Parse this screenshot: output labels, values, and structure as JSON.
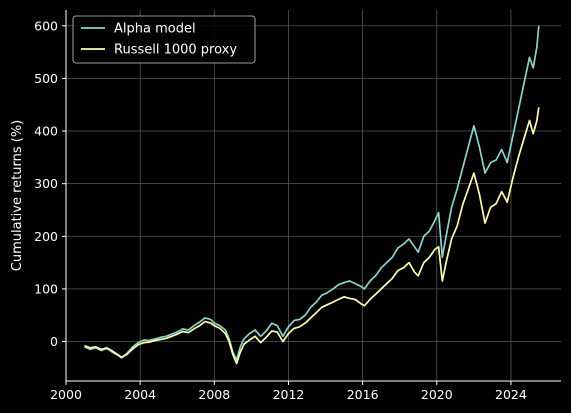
{
  "chart_data": {
    "type": "line",
    "title": "",
    "xlabel": "",
    "ylabel": "Cumulative returns (%)",
    "xlim": [
      2000.0,
      2026.7
    ],
    "ylim": [
      -75,
      630
    ],
    "xticks": [
      2000,
      2004,
      2008,
      2012,
      2016,
      2020,
      2024
    ],
    "yticks": [
      0,
      100,
      200,
      300,
      400,
      500,
      600
    ],
    "grid": true,
    "legend_position": "top-left",
    "colors": {
      "background": "#000000",
      "grid": "#555555",
      "axis": "#ffffff"
    },
    "series": [
      {
        "name": "Alpha model",
        "color": "#8dd3c7",
        "points": [
          [
            2001.0,
            -10
          ],
          [
            2001.3,
            -15
          ],
          [
            2001.6,
            -12
          ],
          [
            2001.9,
            -17
          ],
          [
            2002.2,
            -13
          ],
          [
            2002.5,
            -20
          ],
          [
            2002.8,
            -26
          ],
          [
            2003.0,
            -31
          ],
          [
            2003.3,
            -22
          ],
          [
            2003.6,
            -10
          ],
          [
            2003.9,
            -2
          ],
          [
            2004.2,
            3
          ],
          [
            2004.5,
            2
          ],
          [
            2004.8,
            5
          ],
          [
            2005.1,
            8
          ],
          [
            2005.4,
            10
          ],
          [
            2005.7,
            14
          ],
          [
            2006.0,
            18
          ],
          [
            2006.3,
            24
          ],
          [
            2006.6,
            22
          ],
          [
            2006.9,
            30
          ],
          [
            2007.2,
            37
          ],
          [
            2007.5,
            45
          ],
          [
            2007.8,
            42
          ],
          [
            2008.0,
            35
          ],
          [
            2008.3,
            30
          ],
          [
            2008.6,
            22
          ],
          [
            2008.8,
            5
          ],
          [
            2009.0,
            -20
          ],
          [
            2009.2,
            -35
          ],
          [
            2009.4,
            -10
          ],
          [
            2009.6,
            5
          ],
          [
            2009.9,
            15
          ],
          [
            2010.2,
            22
          ],
          [
            2010.5,
            10
          ],
          [
            2010.8,
            20
          ],
          [
            2011.1,
            35
          ],
          [
            2011.4,
            30
          ],
          [
            2011.7,
            10
          ],
          [
            2012.0,
            28
          ],
          [
            2012.3,
            40
          ],
          [
            2012.6,
            42
          ],
          [
            2012.9,
            50
          ],
          [
            2013.2,
            65
          ],
          [
            2013.5,
            75
          ],
          [
            2013.8,
            88
          ],
          [
            2014.1,
            93
          ],
          [
            2014.4,
            100
          ],
          [
            2014.7,
            108
          ],
          [
            2015.0,
            112
          ],
          [
            2015.3,
            115
          ],
          [
            2015.6,
            110
          ],
          [
            2015.9,
            105
          ],
          [
            2016.1,
            100
          ],
          [
            2016.4,
            115
          ],
          [
            2016.7,
            125
          ],
          [
            2017.0,
            140
          ],
          [
            2017.3,
            150
          ],
          [
            2017.6,
            160
          ],
          [
            2017.9,
            178
          ],
          [
            2018.2,
            185
          ],
          [
            2018.5,
            195
          ],
          [
            2018.8,
            180
          ],
          [
            2019.0,
            170
          ],
          [
            2019.3,
            200
          ],
          [
            2019.6,
            210
          ],
          [
            2019.9,
            230
          ],
          [
            2020.1,
            245
          ],
          [
            2020.3,
            160
          ],
          [
            2020.5,
            200
          ],
          [
            2020.8,
            255
          ],
          [
            2021.1,
            290
          ],
          [
            2021.4,
            330
          ],
          [
            2021.7,
            370
          ],
          [
            2022.0,
            410
          ],
          [
            2022.3,
            370
          ],
          [
            2022.6,
            320
          ],
          [
            2022.9,
            340
          ],
          [
            2023.2,
            345
          ],
          [
            2023.5,
            365
          ],
          [
            2023.8,
            340
          ],
          [
            2024.1,
            390
          ],
          [
            2024.4,
            440
          ],
          [
            2024.7,
            490
          ],
          [
            2025.0,
            540
          ],
          [
            2025.2,
            520
          ],
          [
            2025.4,
            560
          ],
          [
            2025.5,
            600
          ]
        ]
      },
      {
        "name": "Russell 1000 proxy",
        "color": "#ffffb3",
        "points": [
          [
            2001.0,
            -8
          ],
          [
            2001.3,
            -12
          ],
          [
            2001.6,
            -10
          ],
          [
            2001.9,
            -15
          ],
          [
            2002.2,
            -12
          ],
          [
            2002.5,
            -18
          ],
          [
            2002.8,
            -25
          ],
          [
            2003.0,
            -30
          ],
          [
            2003.3,
            -24
          ],
          [
            2003.6,
            -14
          ],
          [
            2003.9,
            -6
          ],
          [
            2004.2,
            -2
          ],
          [
            2004.5,
            -1
          ],
          [
            2004.8,
            2
          ],
          [
            2005.1,
            4
          ],
          [
            2005.4,
            6
          ],
          [
            2005.7,
            10
          ],
          [
            2006.0,
            14
          ],
          [
            2006.3,
            19
          ],
          [
            2006.6,
            17
          ],
          [
            2006.9,
            24
          ],
          [
            2007.2,
            30
          ],
          [
            2007.5,
            38
          ],
          [
            2007.8,
            35
          ],
          [
            2008.0,
            30
          ],
          [
            2008.3,
            25
          ],
          [
            2008.6,
            15
          ],
          [
            2008.8,
            0
          ],
          [
            2009.0,
            -25
          ],
          [
            2009.2,
            -42
          ],
          [
            2009.4,
            -20
          ],
          [
            2009.6,
            -5
          ],
          [
            2009.9,
            3
          ],
          [
            2010.2,
            10
          ],
          [
            2010.5,
            -2
          ],
          [
            2010.8,
            8
          ],
          [
            2011.1,
            20
          ],
          [
            2011.4,
            18
          ],
          [
            2011.7,
            0
          ],
          [
            2012.0,
            15
          ],
          [
            2012.3,
            25
          ],
          [
            2012.6,
            28
          ],
          [
            2012.9,
            35
          ],
          [
            2013.2,
            45
          ],
          [
            2013.5,
            55
          ],
          [
            2013.8,
            65
          ],
          [
            2014.1,
            70
          ],
          [
            2014.4,
            75
          ],
          [
            2014.7,
            80
          ],
          [
            2015.0,
            85
          ],
          [
            2015.3,
            82
          ],
          [
            2015.6,
            80
          ],
          [
            2015.9,
            72
          ],
          [
            2016.1,
            68
          ],
          [
            2016.4,
            80
          ],
          [
            2016.7,
            90
          ],
          [
            2017.0,
            100
          ],
          [
            2017.3,
            110
          ],
          [
            2017.6,
            120
          ],
          [
            2017.9,
            135
          ],
          [
            2018.2,
            140
          ],
          [
            2018.5,
            150
          ],
          [
            2018.8,
            132
          ],
          [
            2019.0,
            125
          ],
          [
            2019.3,
            150
          ],
          [
            2019.6,
            160
          ],
          [
            2019.9,
            175
          ],
          [
            2020.1,
            180
          ],
          [
            2020.3,
            115
          ],
          [
            2020.5,
            150
          ],
          [
            2020.8,
            195
          ],
          [
            2021.1,
            220
          ],
          [
            2021.4,
            260
          ],
          [
            2021.7,
            290
          ],
          [
            2022.0,
            320
          ],
          [
            2022.3,
            280
          ],
          [
            2022.6,
            225
          ],
          [
            2022.9,
            255
          ],
          [
            2023.2,
            262
          ],
          [
            2023.5,
            285
          ],
          [
            2023.8,
            265
          ],
          [
            2024.1,
            310
          ],
          [
            2024.4,
            350
          ],
          [
            2024.7,
            385
          ],
          [
            2025.0,
            420
          ],
          [
            2025.2,
            395
          ],
          [
            2025.4,
            420
          ],
          [
            2025.5,
            445
          ]
        ]
      }
    ]
  }
}
